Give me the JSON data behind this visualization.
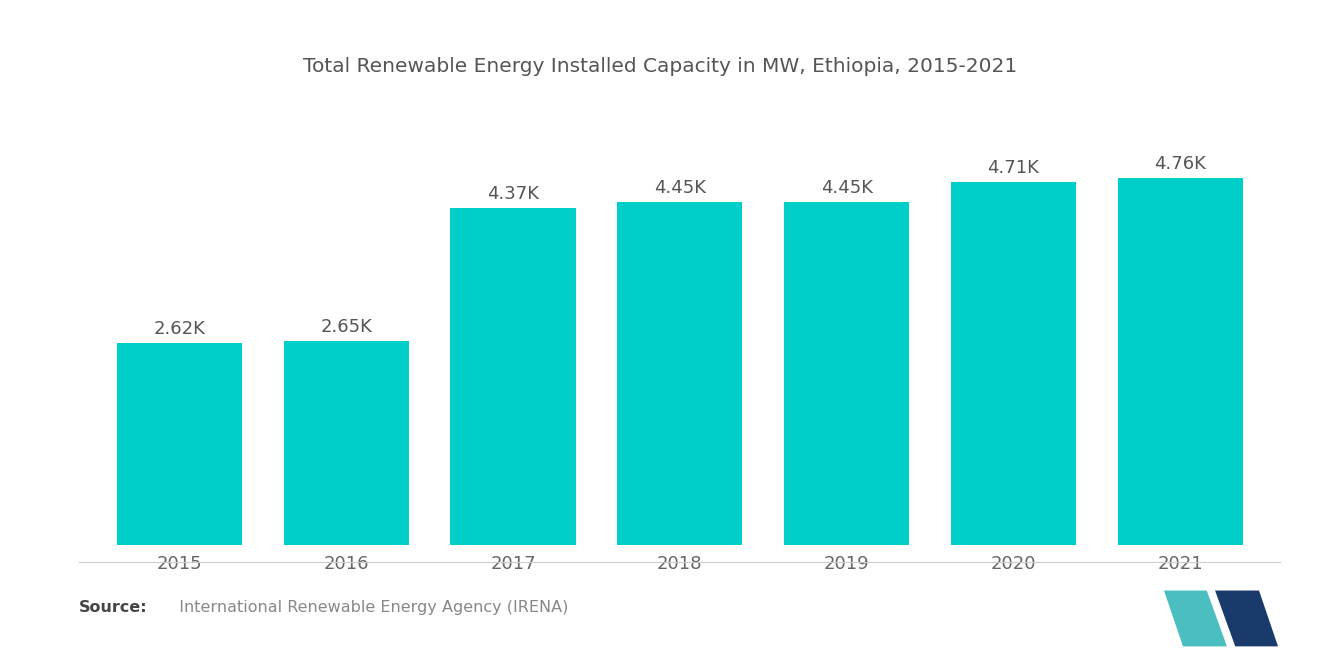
{
  "title": "Total Renewable Energy Installed Capacity in MW, Ethiopia, 2015-2021",
  "years": [
    "2015",
    "2016",
    "2017",
    "2018",
    "2019",
    "2020",
    "2021"
  ],
  "values": [
    2620,
    2650,
    4370,
    4450,
    4450,
    4710,
    4760
  ],
  "labels": [
    "2.62K",
    "2.65K",
    "4.37K",
    "4.45K",
    "4.45K",
    "4.71K",
    "4.76K"
  ],
  "bar_color": "#00CEC9",
  "background_color": "#FFFFFF",
  "title_fontsize": 14.5,
  "label_fontsize": 13,
  "tick_fontsize": 13,
  "source_bold": "Source:",
  "source_text": "  International Renewable Energy Agency (IRENA)",
  "ylim": [
    0,
    5600
  ],
  "bar_width": 0.75,
  "title_color": "#555555",
  "tick_color": "#666666",
  "label_color": "#555555"
}
